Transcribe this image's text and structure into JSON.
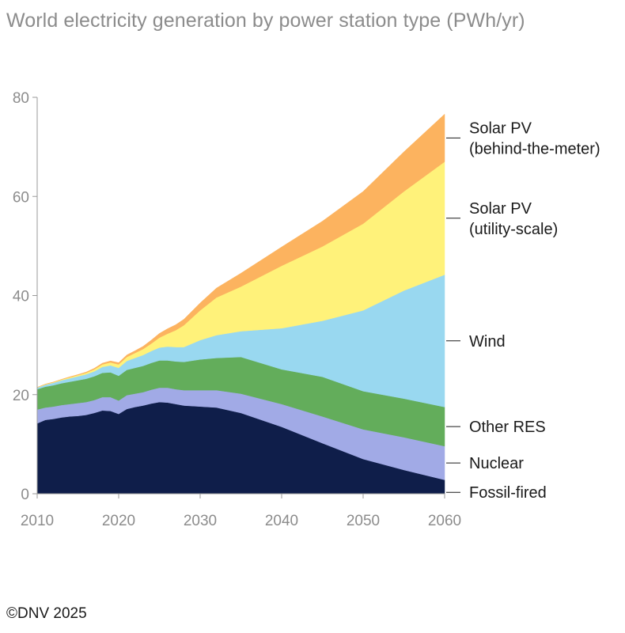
{
  "title": "World electricity generation by power station type (PWh/yr)",
  "credit": "©DNV 2025",
  "chart_data": {
    "type": "area",
    "stacked": true,
    "title": "World electricity generation by power station type (PWh/yr)",
    "xlabel": "",
    "ylabel": "",
    "xlim": [
      2010,
      2060
    ],
    "ylim": [
      0,
      80
    ],
    "x_ticks": [
      "2010",
      "2020",
      "2030",
      "2040",
      "2050",
      "2060"
    ],
    "y_ticks": [
      "0",
      "20",
      "40",
      "60",
      "80"
    ],
    "grid": false,
    "legend": "direct labels on right",
    "x": [
      2010,
      2011,
      2012,
      2013,
      2014,
      2015,
      2016,
      2017,
      2018,
      2019,
      2020,
      2021,
      2022,
      2023,
      2024,
      2025,
      2026,
      2027,
      2028,
      2030,
      2032,
      2035,
      2040,
      2045,
      2050,
      2055,
      2060
    ],
    "series": [
      {
        "name": "Fossil-fired",
        "color": "#0f1e4a",
        "label_lines": [
          "Fossil-fired"
        ],
        "values": [
          14.2,
          14.9,
          15.1,
          15.4,
          15.6,
          15.7,
          15.9,
          16.3,
          16.8,
          16.7,
          16.1,
          17.1,
          17.5,
          17.8,
          18.2,
          18.5,
          18.4,
          18.1,
          17.8,
          17.6,
          17.4,
          16.3,
          13.5,
          10.2,
          7.0,
          4.8,
          2.8
        ]
      },
      {
        "name": "Nuclear",
        "color": "#a1aae6",
        "label_lines": [
          "Nuclear"
        ],
        "values": [
          2.8,
          2.5,
          2.5,
          2.5,
          2.5,
          2.6,
          2.6,
          2.6,
          2.7,
          2.8,
          2.7,
          2.8,
          2.7,
          2.7,
          2.8,
          2.9,
          3.0,
          3.0,
          3.1,
          3.3,
          3.5,
          3.9,
          4.6,
          5.4,
          6.0,
          6.6,
          6.8
        ]
      },
      {
        "name": "Other RES",
        "color": "#63ad5b",
        "label_lines": [
          "Other RES"
        ],
        "values": [
          4.1,
          4.2,
          4.3,
          4.4,
          4.5,
          4.6,
          4.7,
          4.8,
          4.9,
          5.0,
          5.0,
          5.1,
          5.2,
          5.3,
          5.4,
          5.5,
          5.5,
          5.6,
          5.7,
          6.2,
          6.5,
          7.4,
          7.0,
          8.0,
          7.7,
          7.8,
          7.9
        ]
      },
      {
        "name": "Wind",
        "color": "#99d8f0",
        "label_lines": [
          "Wind"
        ],
        "values": [
          0.3,
          0.4,
          0.5,
          0.6,
          0.7,
          0.8,
          0.9,
          1.0,
          1.2,
          1.4,
          1.6,
          1.8,
          2.0,
          2.2,
          2.4,
          2.6,
          2.8,
          2.9,
          3.0,
          3.9,
          4.6,
          5.2,
          8.3,
          11.3,
          16.3,
          21.8,
          26.7
        ]
      },
      {
        "name": "Solar PV (utility-scale)",
        "color": "#fff27a",
        "label_lines": [
          "Solar PV",
          "(utility-scale)"
        ],
        "values": [
          0.05,
          0.1,
          0.1,
          0.15,
          0.2,
          0.25,
          0.3,
          0.4,
          0.5,
          0.6,
          0.7,
          0.8,
          1.0,
          1.2,
          1.5,
          2.0,
          2.6,
          3.4,
          4.4,
          6.0,
          7.6,
          9.0,
          12.6,
          15.0,
          17.5,
          20.0,
          22.8
        ]
      },
      {
        "name": "Solar PV (behind-the-meter)",
        "color": "#fcb35f",
        "label_lines": [
          "Solar PV",
          "(behind-the-meter)"
        ],
        "values": [
          0.02,
          0.03,
          0.05,
          0.05,
          0.1,
          0.1,
          0.15,
          0.2,
          0.25,
          0.3,
          0.35,
          0.4,
          0.45,
          0.55,
          0.7,
          0.85,
          1.0,
          1.1,
          1.2,
          1.5,
          1.9,
          2.7,
          3.8,
          5.1,
          6.5,
          8.0,
          9.6
        ]
      }
    ]
  }
}
